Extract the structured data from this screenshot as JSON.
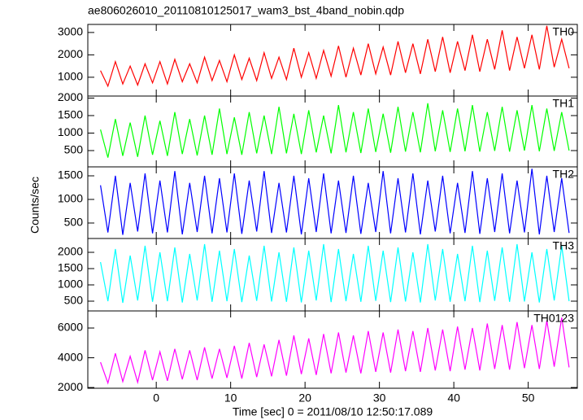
{
  "title": "ae806026010_20110810125017_wam3_bst_4band_nobin.qdp",
  "ylabel": "Counts/sec",
  "xlabel": "Time [sec] 0 = 2011/08/10 12:50:17.089",
  "chart_data": [
    {
      "type": "line",
      "xlim": [
        -9.2,
        56.6
      ],
      "xticks": [
        0,
        10,
        20,
        30,
        40,
        50
      ],
      "ylim": [
        160,
        3360
      ],
      "yticks": [
        1000,
        2000,
        3000
      ],
      "x": [
        -7.5,
        -6.5,
        -5.5,
        -4.5,
        -3.5,
        -2.5,
        -1.5,
        -0.5,
        0.5,
        1.5,
        2.5,
        3.5,
        4.5,
        5.5,
        6.5,
        7.5,
        8.5,
        9.5,
        10.5,
        11.5,
        12.5,
        13.5,
        14.5,
        15.5,
        16.5,
        17.5,
        18.5,
        19.5,
        20.5,
        21.5,
        22.5,
        23.5,
        24.5,
        25.5,
        26.5,
        27.5,
        28.5,
        29.5,
        30.5,
        31.5,
        32.5,
        33.5,
        34.5,
        35.5,
        36.5,
        37.5,
        38.5,
        39.5,
        40.5,
        41.5,
        42.5,
        43.5,
        44.5,
        45.5,
        46.5,
        47.5,
        48.5,
        49.5,
        50.5,
        51.5,
        52.5,
        53.5,
        54.5,
        55.5
      ],
      "series": [
        {
          "name": "TH0",
          "color": "#ff0000",
          "values": [
            1300,
            600,
            1700,
            700,
            1500,
            650,
            1600,
            750,
            1700,
            700,
            1800,
            800,
            1600,
            750,
            1900,
            850,
            1750,
            800,
            2000,
            900,
            1850,
            850,
            2100,
            950,
            1900,
            900,
            2300,
            1000,
            2100,
            950,
            2200,
            1050,
            2400,
            1000,
            2300,
            1100,
            2500,
            1150,
            2350,
            1100,
            2600,
            1200,
            2500,
            1150,
            2700,
            1250,
            2800,
            1200,
            2600,
            1300,
            2900,
            1250,
            2700,
            1350,
            3100,
            1300,
            2800,
            1400,
            2900,
            1350,
            3300,
            1450,
            2700,
            1400
          ]
        }
      ]
    },
    {
      "type": "line",
      "xlim": [
        -9.2,
        56.6
      ],
      "xticks": [
        0,
        10,
        20,
        30,
        40,
        50
      ],
      "ylim": [
        35,
        2058
      ],
      "yticks": [
        500,
        1000,
        1500,
        2000
      ],
      "x": [
        -7.5,
        -6.5,
        -5.5,
        -4.5,
        -3.5,
        -2.5,
        -1.5,
        -0.5,
        0.5,
        1.5,
        2.5,
        3.5,
        4.5,
        5.5,
        6.5,
        7.5,
        8.5,
        9.5,
        10.5,
        11.5,
        12.5,
        13.5,
        14.5,
        15.5,
        16.5,
        17.5,
        18.5,
        19.5,
        20.5,
        21.5,
        22.5,
        23.5,
        24.5,
        25.5,
        26.5,
        27.5,
        28.5,
        29.5,
        30.5,
        31.5,
        32.5,
        33.5,
        34.5,
        35.5,
        36.5,
        37.5,
        38.5,
        39.5,
        40.5,
        41.5,
        42.5,
        43.5,
        44.5,
        45.5,
        46.5,
        47.5,
        48.5,
        49.5,
        50.5,
        51.5,
        52.5,
        53.5,
        54.5,
        55.5
      ],
      "series": [
        {
          "name": "TH1",
          "color": "#00ff00",
          "values": [
            1100,
            300,
            1400,
            350,
            1300,
            320,
            1500,
            380,
            1350,
            350,
            1600,
            400,
            1400,
            360,
            1500,
            380,
            1700,
            400,
            1450,
            380,
            1600,
            420,
            1500,
            400,
            1750,
            420,
            1550,
            400,
            1650,
            450,
            1500,
            420,
            1800,
            450,
            1600,
            430,
            1700,
            460,
            1550,
            440,
            1750,
            470,
            1600,
            450,
            1850,
            480,
            1650,
            460,
            1700,
            480,
            1800,
            470,
            1600,
            490,
            1750,
            470,
            1650,
            500,
            1800,
            480,
            1700,
            490,
            1600,
            500
          ]
        }
      ]
    },
    {
      "type": "line",
      "xlim": [
        -9.2,
        56.6
      ],
      "xticks": [
        0,
        10,
        20,
        30,
        40,
        50
      ],
      "ylim": [
        172,
        1690
      ],
      "yticks": [
        500,
        1000,
        1500
      ],
      "x": [
        -7.5,
        -6.5,
        -5.5,
        -4.5,
        -3.5,
        -2.5,
        -1.5,
        -0.5,
        0.5,
        1.5,
        2.5,
        3.5,
        4.5,
        5.5,
        6.5,
        7.5,
        8.5,
        9.5,
        10.5,
        11.5,
        12.5,
        13.5,
        14.5,
        15.5,
        16.5,
        17.5,
        18.5,
        19.5,
        20.5,
        21.5,
        22.5,
        23.5,
        24.5,
        25.5,
        26.5,
        27.5,
        28.5,
        29.5,
        30.5,
        31.5,
        32.5,
        33.5,
        34.5,
        35.5,
        36.5,
        37.5,
        38.5,
        39.5,
        40.5,
        41.5,
        42.5,
        43.5,
        44.5,
        45.5,
        46.5,
        47.5,
        48.5,
        49.5,
        50.5,
        51.5,
        52.5,
        53.5,
        54.5,
        55.5
      ],
      "series": [
        {
          "name": "TH2",
          "color": "#0000ff",
          "values": [
            1300,
            300,
            1500,
            250,
            1350,
            320,
            1550,
            280,
            1400,
            300,
            1600,
            260,
            1350,
            310,
            1500,
            280,
            1450,
            300,
            1550,
            270,
            1400,
            320,
            1600,
            290,
            1350,
            300,
            1500,
            260,
            1450,
            310,
            1550,
            280,
            1400,
            290,
            1500,
            270,
            1350,
            310,
            1600,
            280,
            1450,
            300,
            1550,
            260,
            1400,
            320,
            1500,
            280,
            1350,
            290,
            1600,
            270,
            1450,
            310,
            1550,
            280,
            1400,
            300,
            1650,
            260,
            1500,
            310,
            1450,
            290
          ]
        }
      ]
    },
    {
      "type": "line",
      "xlim": [
        -9.2,
        56.6
      ],
      "xticks": [
        0,
        10,
        20,
        30,
        40,
        50
      ],
      "ylim": [
        200,
        2425
      ],
      "yticks": [
        500,
        1000,
        1500,
        2000
      ],
      "x": [
        -7.5,
        -6.5,
        -5.5,
        -4.5,
        -3.5,
        -2.5,
        -1.5,
        -0.5,
        0.5,
        1.5,
        2.5,
        3.5,
        4.5,
        5.5,
        6.5,
        7.5,
        8.5,
        9.5,
        10.5,
        11.5,
        12.5,
        13.5,
        14.5,
        15.5,
        16.5,
        17.5,
        18.5,
        19.5,
        20.5,
        21.5,
        22.5,
        23.5,
        24.5,
        25.5,
        26.5,
        27.5,
        28.5,
        29.5,
        30.5,
        31.5,
        32.5,
        33.5,
        34.5,
        35.5,
        36.5,
        37.5,
        38.5,
        39.5,
        40.5,
        41.5,
        42.5,
        43.5,
        44.5,
        45.5,
        46.5,
        47.5,
        48.5,
        49.5,
        50.5,
        51.5,
        52.5,
        53.5,
        54.5,
        55.5
      ],
      "series": [
        {
          "name": "TH3",
          "color": "#00ffff",
          "values": [
            1700,
            500,
            2100,
            450,
            1900,
            520,
            2200,
            480,
            2000,
            500,
            2150,
            460,
            1950,
            520,
            2250,
            480,
            2050,
            500,
            2100,
            470,
            1900,
            510,
            2200,
            490,
            2000,
            480,
            2150,
            460,
            2050,
            520,
            2250,
            470,
            2100,
            500,
            1950,
            480,
            2200,
            510,
            2050,
            470,
            2150,
            490,
            2000,
            460,
            2250,
            520,
            2100,
            480,
            1950,
            500,
            2200,
            470,
            2050,
            510,
            2150,
            480,
            2250,
            490,
            2000,
            460,
            2100,
            520,
            2200,
            500
          ]
        }
      ]
    },
    {
      "type": "line",
      "xlim": [
        -9.2,
        56.6
      ],
      "xticks": [
        0,
        10,
        20,
        30,
        40,
        50
      ],
      "ylim": [
        1950,
        7150
      ],
      "yticks": [
        2000,
        4000,
        6000
      ],
      "x": [
        -7.5,
        -6.5,
        -5.5,
        -4.5,
        -3.5,
        -2.5,
        -1.5,
        -0.5,
        0.5,
        1.5,
        2.5,
        3.5,
        4.5,
        5.5,
        6.5,
        7.5,
        8.5,
        9.5,
        10.5,
        11.5,
        12.5,
        13.5,
        14.5,
        15.5,
        16.5,
        17.5,
        18.5,
        19.5,
        20.5,
        21.5,
        22.5,
        23.5,
        24.5,
        25.5,
        26.5,
        27.5,
        28.5,
        29.5,
        30.5,
        31.5,
        32.5,
        33.5,
        34.5,
        35.5,
        36.5,
        37.5,
        38.5,
        39.5,
        40.5,
        41.5,
        42.5,
        43.5,
        44.5,
        45.5,
        46.5,
        47.5,
        48.5,
        49.5,
        50.5,
        51.5,
        52.5,
        53.5,
        54.5,
        55.5
      ],
      "series": [
        {
          "name": "TH0123",
          "color": "#ff00ff",
          "values": [
            3700,
            2300,
            4300,
            2400,
            4100,
            2350,
            4500,
            2500,
            4400,
            2450,
            4600,
            2550,
            4500,
            2500,
            4700,
            2600,
            4600,
            2650,
            4800,
            2600,
            5000,
            2700,
            4900,
            2750,
            5200,
            2800,
            5500,
            2900,
            5300,
            2850,
            5600,
            2950,
            5700,
            3000,
            5500,
            2950,
            5800,
            3050,
            5700,
            3000,
            5900,
            3100,
            5800,
            3050,
            6000,
            3150,
            5900,
            3100,
            6100,
            3200,
            6000,
            3150,
            6300,
            3250,
            6200,
            3200,
            6400,
            3300,
            6200,
            3250,
            6500,
            3400,
            6700,
            3350
          ]
        }
      ]
    }
  ]
}
